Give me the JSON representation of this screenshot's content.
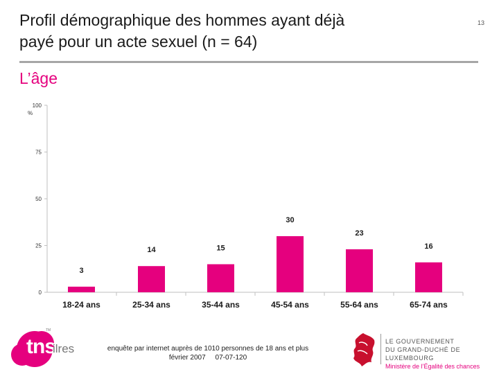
{
  "page": {
    "title_line1": "Profil démographique des hommes ayant déjà",
    "title_line2": "payé pour un acte sexuel (n = 64)",
    "subtitle": "L’âge",
    "page_number": "13"
  },
  "footer": {
    "line1": "enquête par internet auprès de 1010 personnes de 18 ans et plus",
    "line2": "février 2007     07-07-120"
  },
  "logos": {
    "tns": "tns",
    "ilres": "ilres",
    "tns_tm": "TM",
    "gov_line1": "LE GOUVERNEMENT",
    "gov_line2": "DU GRAND-DUCHÉ DE LUXEMBOURG",
    "gov_line3": "Ministère de l’Égalité des chances"
  },
  "colors": {
    "bar": "#e5007e",
    "accent": "#e5007e",
    "rule": "#a6a6a6"
  },
  "chart_data": {
    "type": "bar",
    "categories": [
      "18-24 ans",
      "25-34 ans",
      "35-44 ans",
      "45-54 ans",
      "55-64 ans",
      "65-74 ans"
    ],
    "values": [
      3,
      14,
      15,
      30,
      23,
      16
    ],
    "ylabel": "%",
    "ylim": [
      0,
      100
    ],
    "yticks": [
      0,
      25,
      50,
      75,
      100
    ],
    "grid": false,
    "legend": "none"
  }
}
